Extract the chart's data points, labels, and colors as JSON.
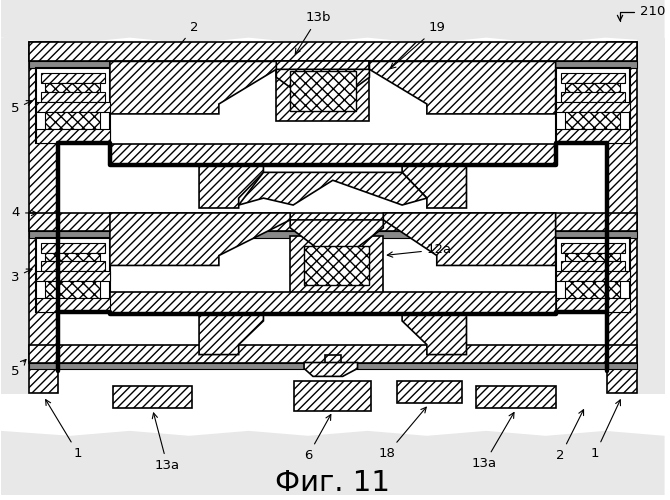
{
  "title": "Фиг. 11",
  "reference_number": "210",
  "bg_color": "#ffffff",
  "labels": {
    "2_top": "2",
    "13b": "13b",
    "19": "19",
    "5_top": "5",
    "4": "4",
    "3": "3",
    "5_bot": "5",
    "1_left": "1",
    "13a_left": "13a",
    "6": "6",
    "18": "18",
    "13a_right": "13a",
    "2_bot": "2",
    "1_right": "1",
    "12a": "12a"
  }
}
